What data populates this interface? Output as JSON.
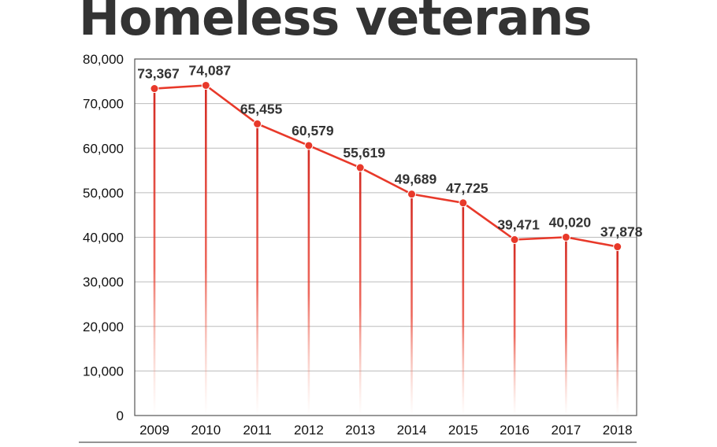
{
  "title": "Homeless veterans",
  "colors": {
    "line": "#e8392a",
    "drop": "#d42a22",
    "grid": "#bbbbbb",
    "frame": "#555555"
  },
  "chart_data": {
    "type": "line",
    "title": "Homeless veterans",
    "xlabel": "",
    "ylabel": "",
    "categories": [
      "2009",
      "2010",
      "2011",
      "2012",
      "2013",
      "2014",
      "2015",
      "2016",
      "2017",
      "2018"
    ],
    "values": [
      73367,
      74087,
      65455,
      60579,
      55619,
      49689,
      47725,
      39471,
      40020,
      37878
    ],
    "value_labels": [
      "73,367",
      "74,087",
      "65,455",
      "60,579",
      "55,619",
      "49,689",
      "47,725",
      "39,471",
      "40,020",
      "37,878"
    ],
    "ylim": [
      0,
      80000
    ],
    "yticks": [
      0,
      10000,
      20000,
      30000,
      40000,
      50000,
      60000,
      70000,
      80000
    ],
    "ytick_labels": [
      "0",
      "10,000",
      "20,000",
      "30,000",
      "40,000",
      "50,000",
      "60,000",
      "70,000",
      "80,000"
    ],
    "grid": true,
    "drop_lines": true
  }
}
